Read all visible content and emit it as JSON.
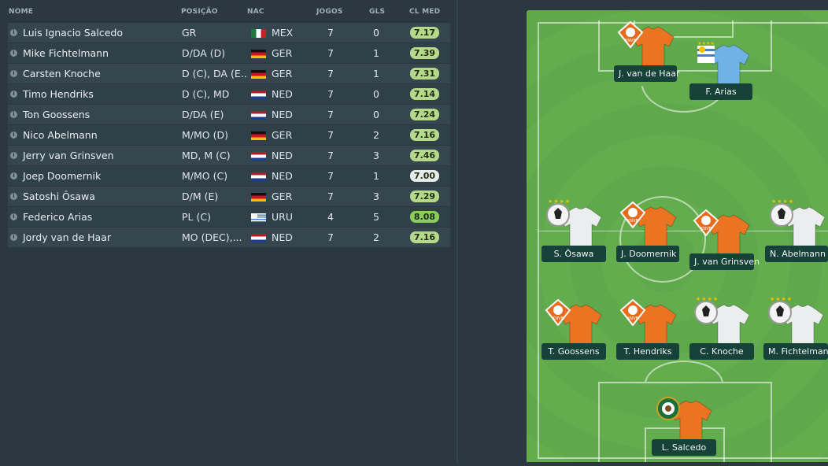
{
  "columns": {
    "name": "NOME",
    "position": "POSIÇÃO",
    "nationality": "NAC",
    "apps": "JOGOS",
    "goals": "GLS",
    "avg_rating": "CL MED"
  },
  "rating_colors": {
    "high": "#8ccc5e",
    "mid": "#b6d88a",
    "neutral": "#e6ece8"
  },
  "players": [
    {
      "name": "Luis Ignacio Salcedo",
      "position": "GR",
      "flag": "mex",
      "nat": "MEX",
      "apps": "7",
      "goals": "0",
      "rating": "7.17",
      "rating_level": "mid"
    },
    {
      "name": "Mike Fichtelmann",
      "position": "D/DA (D)",
      "flag": "ger",
      "nat": "GER",
      "apps": "7",
      "goals": "1",
      "rating": "7.39",
      "rating_level": "mid"
    },
    {
      "name": "Carsten Knoche",
      "position": "D (C), DA (E...",
      "flag": "ger",
      "nat": "GER",
      "apps": "7",
      "goals": "1",
      "rating": "7.31",
      "rating_level": "mid"
    },
    {
      "name": "Timo Hendriks",
      "position": "D (C), MD",
      "flag": "ned",
      "nat": "NED",
      "apps": "7",
      "goals": "0",
      "rating": "7.14",
      "rating_level": "mid"
    },
    {
      "name": "Ton Goossens",
      "position": "D/DA (E)",
      "flag": "ned",
      "nat": "NED",
      "apps": "7",
      "goals": "0",
      "rating": "7.24",
      "rating_level": "mid"
    },
    {
      "name": "Nico Abelmann",
      "position": "M/MO (D)",
      "flag": "ger",
      "nat": "GER",
      "apps": "7",
      "goals": "2",
      "rating": "7.16",
      "rating_level": "mid"
    },
    {
      "name": "Jerry van Grinsven",
      "position": "MD, M (C)",
      "flag": "ned",
      "nat": "NED",
      "apps": "7",
      "goals": "3",
      "rating": "7.46",
      "rating_level": "mid"
    },
    {
      "name": "Joep Doomernik",
      "position": "M/MO (C)",
      "flag": "ned",
      "nat": "NED",
      "apps": "7",
      "goals": "1",
      "rating": "7.00",
      "rating_level": "neutral"
    },
    {
      "name": "Satoshi Ôsawa",
      "position": "D/M (E)",
      "flag": "ger",
      "nat": "GER",
      "apps": "7",
      "goals": "3",
      "rating": "7.29",
      "rating_level": "mid"
    },
    {
      "name": "Federico Arias",
      "position": "PL (C)",
      "flag": "uru",
      "nat": "URU",
      "apps": "4",
      "goals": "5",
      "rating": "8.08",
      "rating_level": "high"
    },
    {
      "name": "Jordy van de Haar",
      "position": "MO (DEC),...",
      "flag": "ned",
      "nat": "NED",
      "apps": "7",
      "goals": "2",
      "rating": "7.16",
      "rating_level": "mid"
    }
  ],
  "pitch": {
    "players": [
      {
        "label": "J. van de Haar",
        "kit": "orange",
        "crest": "knvb"
      },
      {
        "label": "F. Arias",
        "kit": "skyblue",
        "crest": "auf"
      },
      {
        "label": "S. Ôsawa",
        "kit": "white",
        "crest": "dfb",
        "stars": "★★★★"
      },
      {
        "label": "J. Doomernik",
        "kit": "orange",
        "crest": "knvb"
      },
      {
        "label": "J. van Grinsven",
        "kit": "orange",
        "crest": "knvb"
      },
      {
        "label": "N. Abelmann",
        "kit": "white",
        "crest": "dfb",
        "stars": "★★★★"
      },
      {
        "label": "T. Goossens",
        "kit": "orange",
        "crest": "knvb"
      },
      {
        "label": "T. Hendriks",
        "kit": "orange",
        "crest": "knvb"
      },
      {
        "label": "C. Knoche",
        "kit": "white",
        "crest": "dfb",
        "stars": "★★★★"
      },
      {
        "label": "M. Fichtelmann",
        "kit": "white",
        "crest": "dfb",
        "stars": "★★★★"
      },
      {
        "label": "L. Salcedo",
        "kit": "orange",
        "crest": "fmf"
      }
    ]
  }
}
